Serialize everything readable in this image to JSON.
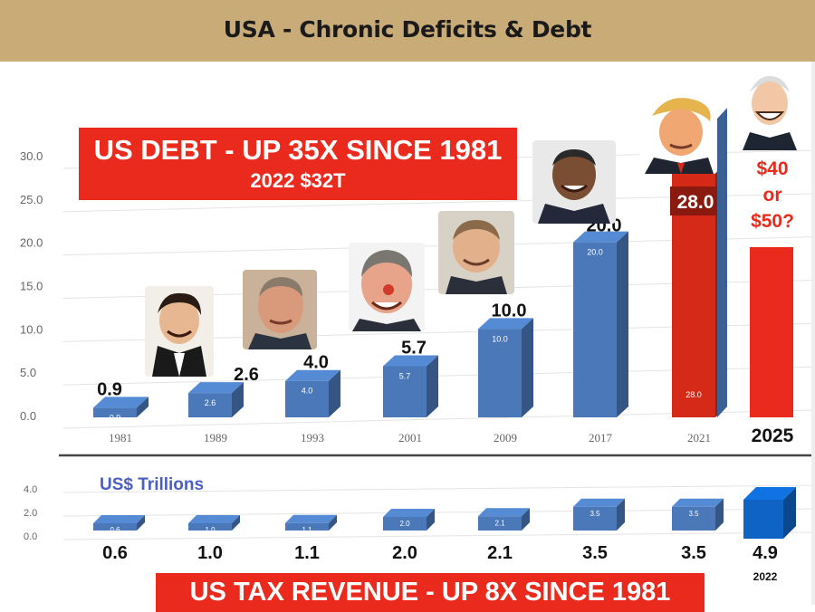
{
  "title": "USA - Chronic Deficits & Debt",
  "debt_banner": {
    "line1": "US DEBT - UP 35X SINCE 1981",
    "line2": "2022 $32T"
  },
  "revenue_banner": "US TAX REVENUE - UP 8X SINCE 1981",
  "units_label": "US$ Trillions",
  "colors": {
    "header": "#c9ab78",
    "bar_blue": "#4a78b8",
    "bar_red": "#d42a17",
    "banner_red": "#ea2a1c",
    "bright_blue": "#0f63c4",
    "units_text": "#4a5fc6"
  },
  "chart_data": [
    {
      "type": "bar",
      "title": "",
      "categories": [
        "1981",
        "1989",
        "1993",
        "2001",
        "2009",
        "2017",
        "2021",
        "2025"
      ],
      "values": [
        0.9,
        2.6,
        4.0,
        5.7,
        10.0,
        20.0,
        28.0,
        null
      ],
      "bar_labels": [
        "0.9",
        "2.6",
        "4.0",
        "5.7",
        "10.0",
        "20.0",
        "28.0",
        ""
      ],
      "value_labels": [
        "0.9",
        "2.6",
        "4.0",
        "5.7",
        "10.0",
        "20.0",
        "28.0",
        "$40\nor\n$50?"
      ],
      "yticks": [
        "0.0",
        "5.0",
        "10.0",
        "15.0",
        "20.0",
        "25.0",
        "30.0"
      ],
      "ylim": [
        0,
        30
      ],
      "grid": true,
      "xlabel": "",
      "ylabel": ""
    },
    {
      "type": "bar",
      "title": "",
      "categories": [
        "",
        "",
        "",
        "",
        "",
        "",
        "",
        "2022"
      ],
      "values": [
        0.6,
        1.0,
        1.1,
        2.0,
        2.1,
        3.5,
        3.5,
        4.9
      ],
      "bar_labels": [
        "0.6",
        "1.0",
        "1.1",
        "2.0",
        "2.1",
        "3.5",
        "3.5",
        ""
      ],
      "value_labels": [
        "0.6",
        "1.0",
        "1.1",
        "2.0",
        "2.1",
        "3.5",
        "3.5",
        "4.9"
      ],
      "yticks": [
        "0.0",
        "2.0",
        "4.0"
      ],
      "ylim": [
        0,
        4
      ],
      "grid": true,
      "xlabel": "",
      "ylabel": "US$ Trillions"
    }
  ]
}
